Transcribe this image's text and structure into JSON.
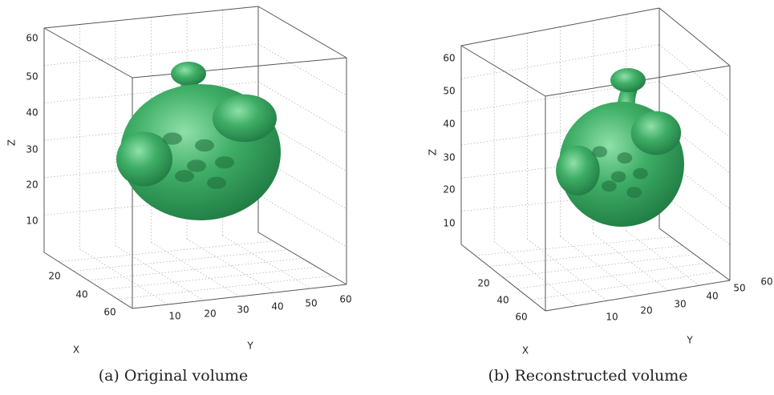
{
  "panels": [
    {
      "caption": "(a) Original volume",
      "axes": {
        "x": {
          "label": "X",
          "ticks": [
            20,
            40,
            60
          ]
        },
        "y": {
          "label": "Y",
          "ticks": [
            10,
            20,
            30,
            40,
            50,
            60
          ]
        },
        "z": {
          "label": "Z",
          "ticks": [
            10,
            20,
            30,
            40,
            50,
            60
          ]
        }
      }
    },
    {
      "caption": "(b) Reconstructed volume",
      "axes": {
        "x": {
          "label": "X",
          "ticks": [
            20,
            40,
            60
          ]
        },
        "y": {
          "label": "Y",
          "ticks": [
            10,
            20,
            30,
            40,
            50,
            60
          ]
        },
        "z": {
          "label": "Z",
          "ticks": [
            10,
            20,
            30,
            40,
            50,
            60
          ]
        }
      }
    }
  ]
}
